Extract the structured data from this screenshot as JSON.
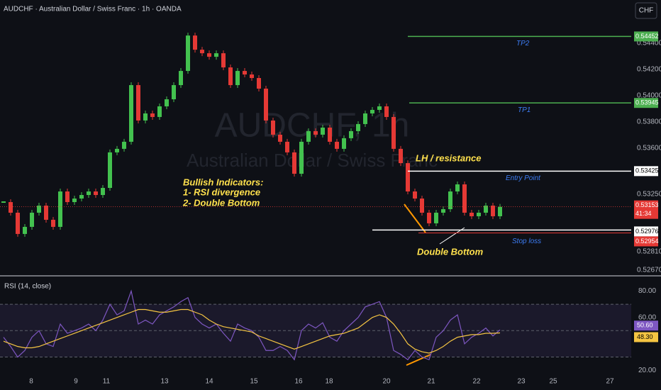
{
  "header": {
    "title": "AUDCHF · Australian Dollar / Swiss Franc · 1h · OANDA",
    "currency": "CHF"
  },
  "chart_data": [
    {
      "type": "candlestick",
      "watermark": [
        "AUDCHF, 1h",
        "Australian Dollar / Swiss Franc"
      ],
      "closes": [
        0.53189,
        0.53108,
        0.52946,
        0.53,
        0.53108,
        0.53162,
        0.53054,
        0.53,
        0.5327,
        0.53189,
        0.53216,
        0.53243,
        0.5327,
        0.53243,
        0.53297,
        0.53568,
        0.53595,
        0.53649,
        0.54081,
        0.53811,
        0.53865,
        0.53838,
        0.53919,
        0.53973,
        0.54081,
        0.54189,
        0.54459,
        0.54351,
        0.54324,
        0.54297,
        0.54324,
        0.54216,
        0.54081,
        0.54189,
        0.54162,
        0.54135,
        0.54054,
        0.53811,
        0.53703,
        0.53649,
        0.53568,
        0.53405,
        0.53649,
        0.5373,
        0.53703,
        0.53757,
        0.53649,
        0.53595,
        0.53676,
        0.5373,
        0.53784,
        0.53865,
        0.53892,
        0.53919,
        0.53838,
        0.53595,
        0.53486,
        0.5327,
        0.53216,
        0.53108,
        0.53027,
        0.53108,
        0.53135,
        0.5327,
        0.53324,
        0.53108,
        0.53081,
        0.53108,
        0.53162,
        0.53081,
        0.53153
      ],
      "up_color": "#43c24f",
      "down_color": "#e53935",
      "ylim": [
        0.52632,
        0.5473
      ],
      "yticks": [
        {
          "value": 0.544,
          "label": "0.54400"
        },
        {
          "value": 0.542,
          "label": "0.54200"
        },
        {
          "value": 0.54,
          "label": "0.54000"
        },
        {
          "value": 0.538,
          "label": "0.53800"
        },
        {
          "value": 0.536,
          "label": "0.53600"
        },
        {
          "value": 0.5325,
          "label": "0.53250"
        },
        {
          "value": 0.5281,
          "label": "0.52810"
        },
        {
          "value": 0.5267,
          "label": "0.52670"
        }
      ],
      "levels": [
        {
          "name": "TP2",
          "value": 0.54452,
          "label": "0.54452",
          "color": "#4caf50"
        },
        {
          "name": "TP1",
          "value": 0.53945,
          "label": "0.53945",
          "color": "#4caf50"
        },
        {
          "name": "Entry Point",
          "value": 0.53425,
          "label": "0.53425",
          "color": "#ffffff"
        },
        {
          "value": 0.52976,
          "label": "0.52976",
          "color": "#ffffff"
        },
        {
          "name": "Stop loss",
          "value": 0.52954,
          "label": "0.52954",
          "color": "#e53935"
        }
      ],
      "last_price": {
        "value": 0.53153,
        "label": "0.53153",
        "countdown": "41:34",
        "color": "#e53935"
      },
      "annotations": {
        "bullish": [
          "Bullish Indicators:",
          "1- RSI divergence",
          "2- Double Bottom"
        ],
        "resistance": "LH / resistance",
        "double_bottom": "Double Bottom"
      }
    },
    {
      "type": "line",
      "title": "RSI (14, close)",
      "series": [
        {
          "color": "#7e57c2",
          "values": [
            45,
            38,
            30,
            35,
            45,
            50,
            40,
            38,
            55,
            48,
            50,
            52,
            55,
            50,
            58,
            70,
            62,
            65,
            80,
            55,
            58,
            55,
            62,
            65,
            68,
            72,
            75,
            60,
            55,
            52,
            55,
            48,
            42,
            55,
            52,
            50,
            45,
            35,
            35,
            38,
            35,
            28,
            50,
            55,
            52,
            56,
            45,
            42,
            50,
            55,
            60,
            68,
            70,
            72,
            60,
            35,
            32,
            28,
            35,
            30,
            28,
            45,
            50,
            58,
            62,
            40,
            45,
            48,
            52,
            46,
            50.6
          ],
          "last_label": "50.60"
        },
        {
          "color": "#f5c542",
          "values": [
            42,
            40,
            38,
            37,
            37,
            38,
            40,
            42,
            44,
            46,
            48,
            50,
            52,
            54,
            56,
            58,
            60,
            62,
            64,
            66,
            66,
            65,
            64,
            64,
            65,
            66,
            66,
            64,
            62,
            58,
            55,
            53,
            52,
            51,
            50,
            49,
            46,
            44,
            42,
            40,
            38,
            36,
            38,
            40,
            42,
            44,
            46,
            47,
            48,
            50,
            52,
            56,
            60,
            62,
            60,
            55,
            48,
            40,
            36,
            34,
            33,
            35,
            38,
            42,
            45,
            46,
            47,
            47,
            48,
            48,
            48.3
          ],
          "last_label": "48.30"
        }
      ],
      "guide_levels": [
        70,
        50,
        30
      ],
      "ylim": [
        19,
        91
      ],
      "yticks": [
        {
          "value": 80,
          "label": "80.00"
        },
        {
          "value": 60,
          "label": "60.00"
        },
        {
          "value": 20,
          "label": "20.00"
        }
      ]
    }
  ],
  "x_axis": {
    "categories": [
      "8",
      "9",
      "11",
      "13",
      "14",
      "15",
      "16",
      "18",
      "20",
      "21",
      "22",
      "23",
      "25",
      "27"
    ]
  }
}
